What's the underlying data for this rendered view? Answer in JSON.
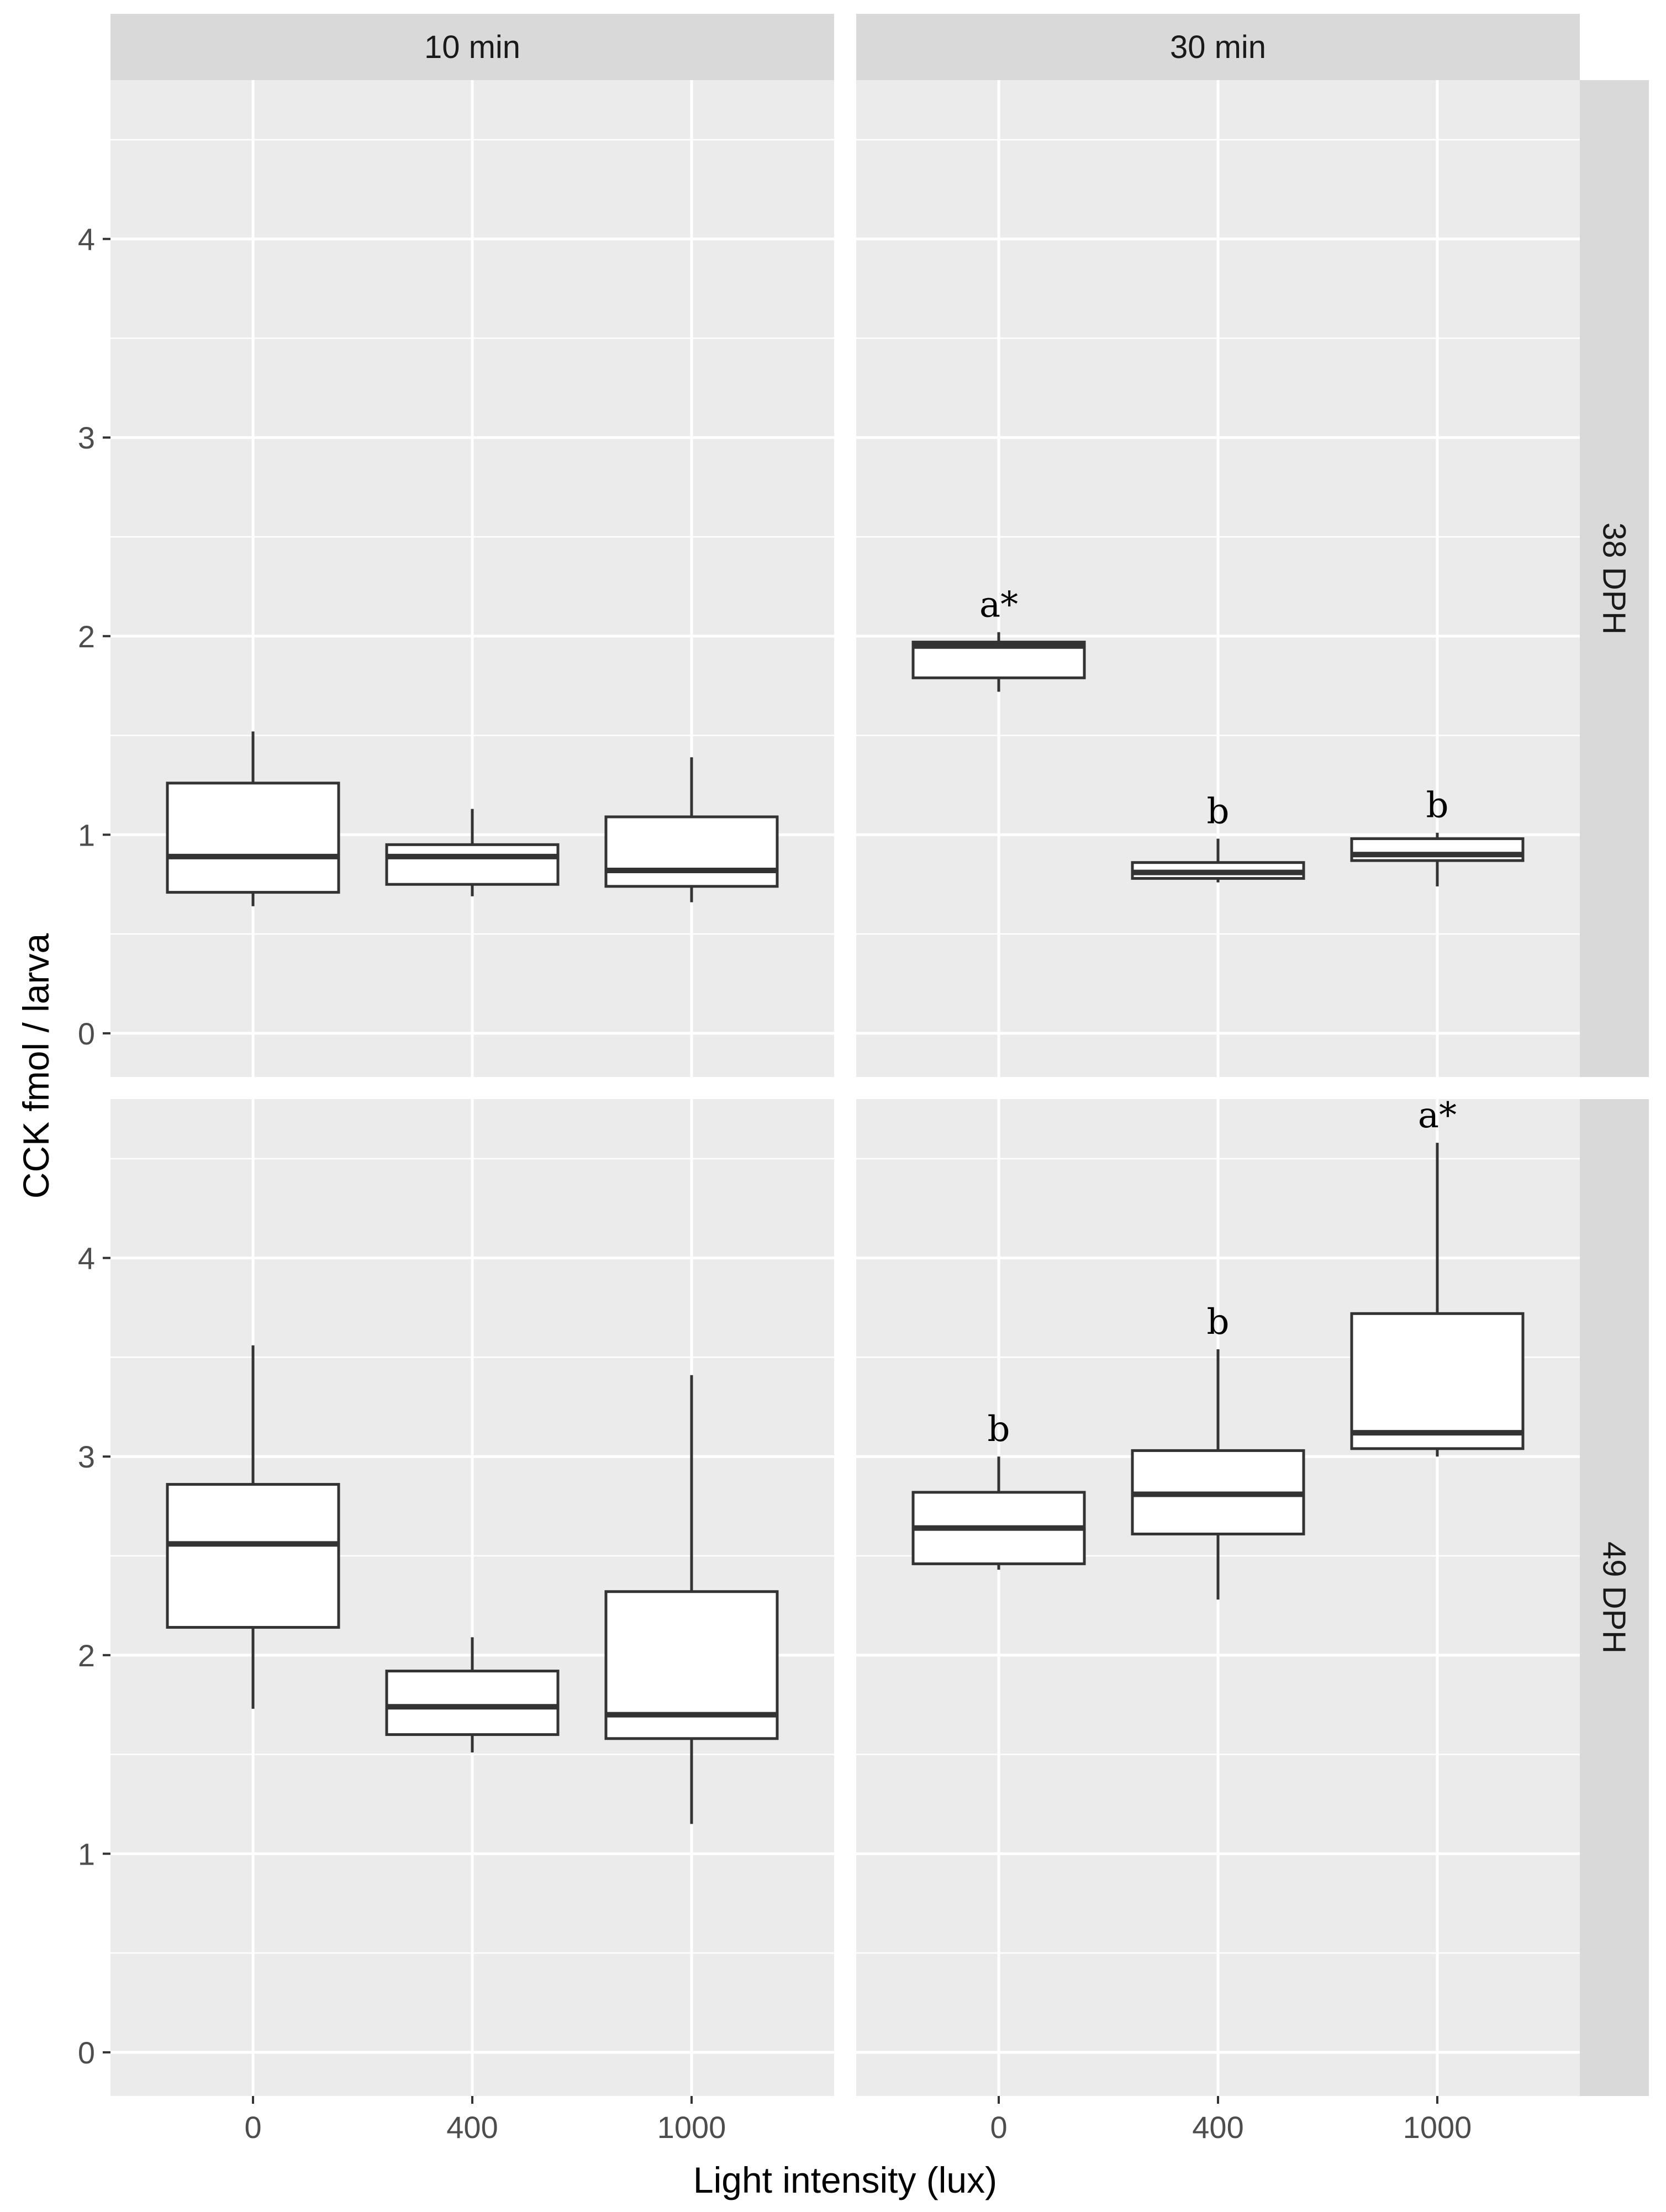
{
  "chart_data": {
    "type": "boxplot",
    "ylabel": "CCK fmol / larva",
    "xlabel": "Light intensity (lux)",
    "categories": [
      "0",
      "400",
      "1000"
    ],
    "column_facets": [
      "10 min",
      "30 min"
    ],
    "row_facets": [
      "38 DPH",
      "49 DPH"
    ],
    "ylim": [
      -0.22,
      4.8
    ],
    "y_ticks": [
      "0",
      "1",
      "2",
      "3",
      "4"
    ],
    "grid": true,
    "panels": [
      {
        "col": "10 min",
        "row": "38 DPH",
        "boxes": [
          {
            "category": "0",
            "min": 0.64,
            "q1": 0.71,
            "median": 0.89,
            "q3": 1.26,
            "max": 1.52,
            "label": ""
          },
          {
            "category": "400",
            "min": 0.69,
            "q1": 0.75,
            "median": 0.89,
            "q3": 0.95,
            "max": 1.13,
            "label": ""
          },
          {
            "category": "1000",
            "min": 0.66,
            "q1": 0.74,
            "median": 0.82,
            "q3": 1.09,
            "max": 1.39,
            "label": ""
          }
        ]
      },
      {
        "col": "30 min",
        "row": "38 DPH",
        "boxes": [
          {
            "category": "0",
            "min": 1.72,
            "q1": 1.79,
            "median": 1.95,
            "q3": 1.97,
            "max": 2.02,
            "label": "a*"
          },
          {
            "category": "400",
            "min": 0.76,
            "q1": 0.78,
            "median": 0.81,
            "q3": 0.86,
            "max": 0.98,
            "label": "b"
          },
          {
            "category": "1000",
            "min": 0.74,
            "q1": 0.87,
            "median": 0.9,
            "q3": 0.98,
            "max": 1.01,
            "label": "b"
          }
        ]
      },
      {
        "col": "10 min",
        "row": "49 DPH",
        "boxes": [
          {
            "category": "0",
            "min": 1.73,
            "q1": 2.14,
            "median": 2.56,
            "q3": 2.86,
            "max": 3.56,
            "label": ""
          },
          {
            "category": "400",
            "min": 1.51,
            "q1": 1.6,
            "median": 1.74,
            "q3": 1.92,
            "max": 2.09,
            "label": ""
          },
          {
            "category": "1000",
            "min": 1.15,
            "q1": 1.58,
            "median": 1.7,
            "q3": 2.32,
            "max": 3.41,
            "label": ""
          }
        ]
      },
      {
        "col": "30 min",
        "row": "49 DPH",
        "boxes": [
          {
            "category": "0",
            "min": 2.43,
            "q1": 2.46,
            "median": 2.64,
            "q3": 2.82,
            "max": 3.0,
            "label": "b"
          },
          {
            "category": "400",
            "min": 2.28,
            "q1": 2.61,
            "median": 2.81,
            "q3": 3.03,
            "max": 3.54,
            "label": "b"
          },
          {
            "category": "1000",
            "min": 3.0,
            "q1": 3.04,
            "median": 3.12,
            "q3": 3.72,
            "max": 4.58,
            "label": "a*"
          }
        ]
      }
    ]
  },
  "colors": {
    "panel_background": "#ebebeb",
    "strip_background": "#d9d9d9",
    "gridline": "#ffffff",
    "box_fill": "#ffffff",
    "box_outline": "#333333",
    "axis_text": "#4d4d4d",
    "title_text": "#000000"
  }
}
